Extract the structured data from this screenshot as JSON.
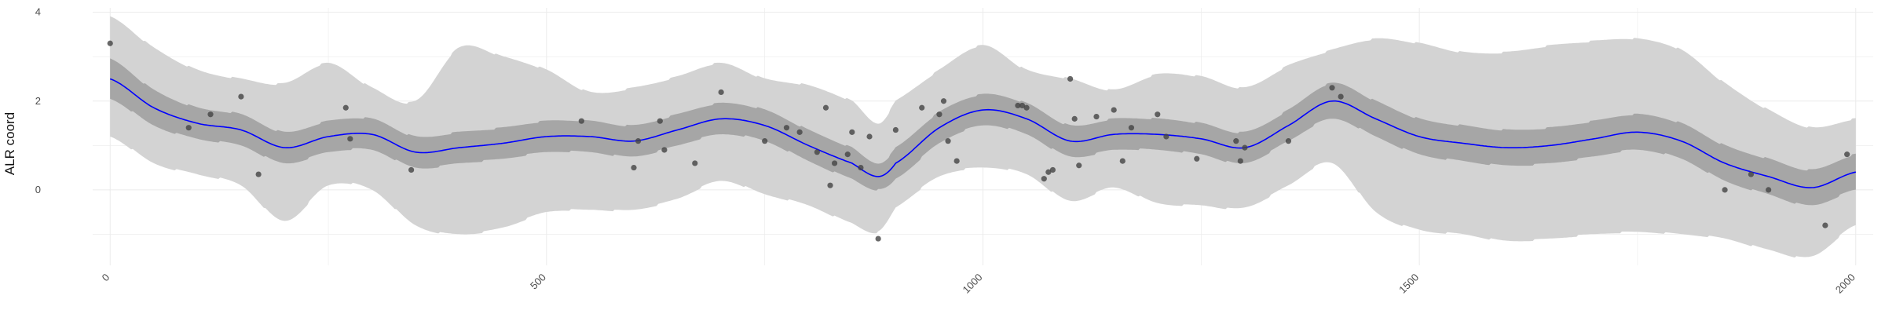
{
  "chart_data": {
    "type": "line",
    "title": "",
    "xlabel": "",
    "ylabel": "ALR coord",
    "xlim": [
      -20,
      2020
    ],
    "ylim": [
      -1.7,
      4.1
    ],
    "x_ticks": [
      0,
      500,
      1000,
      1500,
      2000
    ],
    "x_tick_labels": [
      "0",
      "500",
      "1000",
      "1500",
      "2000"
    ],
    "y_ticks": [
      0,
      2,
      4
    ],
    "y_tick_labels": [
      "0",
      "2",
      "4"
    ],
    "grid": true,
    "legend": "none",
    "colors": {
      "mean_line": "#0000ff",
      "inner_band": "#a6a6a6",
      "outer_band": "#d3d3d3",
      "points": "#444444",
      "grid": "#ebebeb"
    },
    "series": [
      {
        "kind": "line",
        "x": [
          0,
          50,
          100,
          150,
          200,
          250,
          300,
          350,
          400,
          450,
          500,
          550,
          600,
          650,
          700,
          750,
          800,
          850,
          880,
          900,
          950,
          1000,
          1050,
          1100,
          1150,
          1200,
          1250,
          1300,
          1350,
          1400,
          1450,
          1500,
          1550,
          1600,
          1650,
          1700,
          1750,
          1800,
          1850,
          1900,
          1950,
          2000
        ],
        "values": [
          2.5,
          1.85,
          1.5,
          1.35,
          0.95,
          1.2,
          1.25,
          0.85,
          0.95,
          1.05,
          1.2,
          1.2,
          1.1,
          1.35,
          1.6,
          1.45,
          1.0,
          0.6,
          0.3,
          0.6,
          1.4,
          1.8,
          1.6,
          1.1,
          1.25,
          1.25,
          1.15,
          0.95,
          1.45,
          2.0,
          1.6,
          1.2,
          1.05,
          0.95,
          1.0,
          1.15,
          1.3,
          1.1,
          0.6,
          0.3,
          0.05,
          0.4
        ]
      },
      {
        "kind": "band",
        "x": [
          0,
          50,
          100,
          150,
          200,
          250,
          300,
          350,
          400,
          450,
          500,
          550,
          600,
          650,
          700,
          750,
          800,
          850,
          880,
          900,
          950,
          1000,
          1050,
          1100,
          1150,
          1200,
          1250,
          1300,
          1350,
          1400,
          1450,
          1500,
          1550,
          1600,
          1650,
          1700,
          1750,
          1800,
          1850,
          1900,
          1950,
          2000
        ],
        "lower": [
          2.05,
          1.45,
          1.15,
          1.0,
          0.6,
          0.85,
          0.9,
          0.5,
          0.6,
          0.7,
          0.85,
          0.85,
          0.75,
          1.0,
          1.25,
          1.1,
          0.65,
          0.25,
          0.0,
          0.25,
          1.05,
          1.45,
          1.25,
          0.75,
          0.9,
          0.9,
          0.8,
          0.6,
          1.1,
          1.6,
          1.2,
          0.8,
          0.65,
          0.55,
          0.6,
          0.75,
          0.9,
          0.7,
          0.2,
          -0.1,
          -0.35,
          0.0
        ],
        "upper": [
          2.95,
          2.25,
          1.85,
          1.7,
          1.3,
          1.55,
          1.6,
          1.2,
          1.3,
          1.4,
          1.55,
          1.55,
          1.45,
          1.7,
          1.95,
          1.8,
          1.35,
          0.95,
          0.6,
          0.95,
          1.75,
          2.15,
          1.95,
          1.45,
          1.6,
          1.6,
          1.5,
          1.3,
          1.8,
          2.4,
          2.0,
          1.6,
          1.45,
          1.35,
          1.4,
          1.55,
          1.7,
          1.5,
          1.0,
          0.7,
          0.45,
          0.8
        ]
      },
      {
        "kind": "band",
        "x": [
          0,
          50,
          100,
          150,
          200,
          250,
          300,
          350,
          400,
          450,
          500,
          550,
          600,
          650,
          700,
          750,
          800,
          850,
          880,
          900,
          950,
          1000,
          1050,
          1100,
          1150,
          1200,
          1250,
          1300,
          1350,
          1400,
          1450,
          1500,
          1550,
          1600,
          1650,
          1700,
          1750,
          1800,
          1850,
          1900,
          1950,
          2000
        ],
        "lower": [
          1.2,
          0.6,
          0.35,
          0.1,
          -0.7,
          0.1,
          0.0,
          -0.8,
          -1.0,
          -0.85,
          -0.5,
          -0.45,
          -0.45,
          -0.2,
          0.2,
          -0.1,
          -0.35,
          -0.75,
          -0.95,
          -0.4,
          0.3,
          0.5,
          0.35,
          -0.25,
          0.05,
          -0.3,
          -0.35,
          -0.4,
          0.1,
          0.6,
          -0.5,
          -0.9,
          -1.0,
          -1.15,
          -1.1,
          -1.0,
          -0.95,
          -1.0,
          -1.1,
          -1.35,
          -1.5,
          -0.8
        ],
        "upper": [
          3.9,
          3.2,
          2.7,
          2.5,
          2.4,
          2.85,
          2.3,
          2.0,
          3.2,
          3.0,
          2.7,
          2.2,
          2.3,
          2.55,
          2.85,
          2.5,
          2.35,
          2.0,
          1.5,
          2.0,
          2.7,
          3.25,
          2.7,
          2.5,
          2.25,
          2.6,
          2.55,
          2.3,
          2.8,
          3.15,
          3.4,
          3.3,
          3.1,
          3.1,
          3.25,
          3.35,
          3.4,
          3.15,
          2.4,
          1.8,
          1.4,
          1.6
        ]
      },
      {
        "kind": "scatter",
        "x": [
          0,
          90,
          115,
          150,
          170,
          270,
          275,
          345,
          540,
          600,
          605,
          630,
          635,
          670,
          700,
          750,
          775,
          790,
          810,
          820,
          825,
          830,
          845,
          850,
          860,
          870,
          880,
          900,
          930,
          950,
          955,
          960,
          970,
          1040,
          1045,
          1050,
          1070,
          1075,
          1080,
          1100,
          1105,
          1110,
          1130,
          1150,
          1160,
          1170,
          1200,
          1210,
          1245,
          1290,
          1295,
          1300,
          1350,
          1400,
          1410,
          1850,
          1880,
          1900,
          1965,
          1990
        ],
        "values": [
          3.3,
          1.4,
          1.7,
          2.1,
          0.35,
          1.85,
          1.15,
          0.45,
          1.55,
          0.5,
          1.1,
          1.55,
          0.9,
          0.6,
          2.2,
          1.1,
          1.4,
          1.3,
          0.85,
          1.85,
          0.1,
          0.6,
          0.8,
          1.3,
          0.5,
          1.2,
          -1.1,
          1.35,
          1.85,
          1.7,
          2.0,
          1.1,
          0.65,
          1.9,
          1.9,
          1.85,
          0.25,
          0.4,
          0.45,
          2.5,
          1.6,
          0.55,
          1.65,
          1.8,
          0.65,
          1.4,
          1.7,
          1.2,
          0.7,
          1.1,
          0.65,
          0.95,
          1.1,
          2.3,
          2.1,
          0.0,
          0.35,
          0.0,
          -0.8,
          0.8
        ]
      }
    ]
  }
}
